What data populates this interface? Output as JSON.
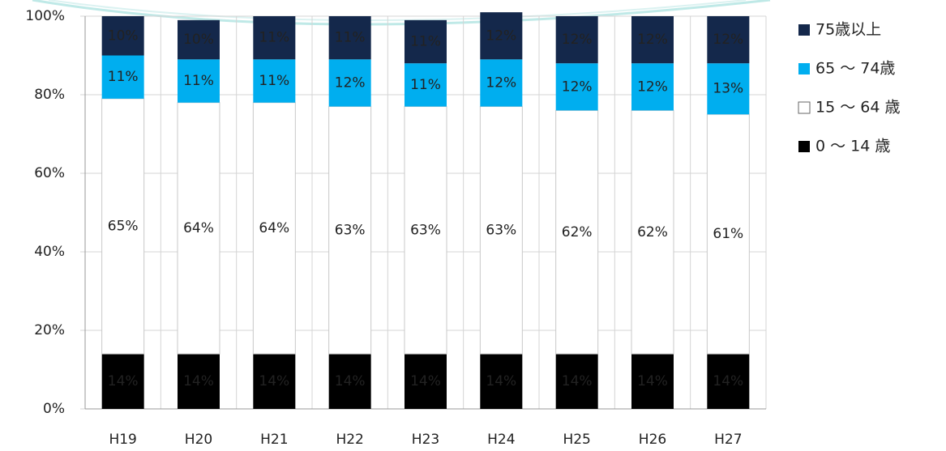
{
  "chart_data": {
    "type": "stacked_bar",
    "categories": [
      "H19",
      "H20",
      "H21",
      "H22",
      "H23",
      "H24",
      "H25",
      "H26",
      "H27"
    ],
    "series": [
      {
        "name": "0 ～ 14 歳",
        "color": "#000000",
        "values": [
          14,
          14,
          14,
          14,
          14,
          14,
          14,
          14,
          14
        ],
        "value_labels": [
          "14%",
          "14%",
          "14%",
          "14%",
          "14%",
          "14%",
          "14%",
          "14%",
          "14%"
        ]
      },
      {
        "name": "15 ～ 64 歳",
        "color": "#ffffff",
        "values": [
          65,
          64,
          64,
          63,
          63,
          63,
          62,
          62,
          61
        ],
        "value_labels": [
          "65%",
          "64%",
          "64%",
          "63%",
          "63%",
          "63%",
          "62%",
          "62%",
          "61%"
        ]
      },
      {
        "name": "65 ～ 74歳",
        "color": "#00aeef",
        "values": [
          11,
          11,
          11,
          12,
          11,
          12,
          12,
          12,
          13
        ],
        "value_labels": [
          "11%",
          "11%",
          "11%",
          "12%",
          "11%",
          "12%",
          "12%",
          "12%",
          "13%"
        ]
      },
      {
        "name": "75歳以上",
        "color": "#14284b",
        "values": [
          10,
          10,
          11,
          11,
          11,
          12,
          12,
          12,
          12
        ],
        "value_labels": [
          "10%",
          "10%",
          "11%",
          "11%",
          "11%",
          "12%",
          "12%",
          "12%",
          "12%"
        ]
      }
    ],
    "ylim": [
      0,
      100
    ],
    "yticks": [
      {
        "value": 0,
        "label": "0%"
      },
      {
        "value": 20,
        "label": "20%"
      },
      {
        "value": 40,
        "label": "40%"
      },
      {
        "value": 60,
        "label": "60%"
      },
      {
        "value": 80,
        "label": "80%"
      },
      {
        "value": 100,
        "label": "100%"
      }
    ],
    "grid": true,
    "legend": "right"
  }
}
